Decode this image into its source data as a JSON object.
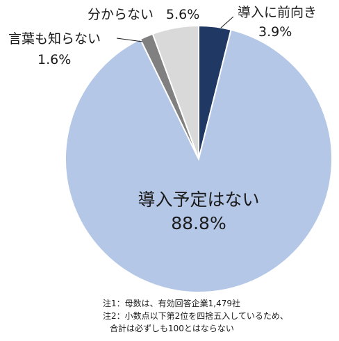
{
  "chart_data": {
    "type": "pie",
    "slices": [
      {
        "label": "導入に前向き",
        "value": 3.9,
        "value_label": "3.9%",
        "color": "#1f3864"
      },
      {
        "label": "導入予定はない",
        "value": 88.8,
        "value_label": "88.8%",
        "color": "#b4c7e7"
      },
      {
        "label": "言葉も知らない",
        "value": 1.6,
        "value_label": "1.6%",
        "color": "#808080"
      },
      {
        "label": "分からない",
        "value": 5.6,
        "value_label": "5.6%",
        "color": "#d9d9d9"
      }
    ],
    "start": "12 o'clock",
    "direction": "clockwise",
    "legend": "none"
  },
  "notes": {
    "note1": "注1：母数は、有効回答企業1,479社",
    "note2_line1": "注2：小数点以下第2位を四捨五入しているため、",
    "note2_line2": "合計は必ずしも100とはならない"
  }
}
